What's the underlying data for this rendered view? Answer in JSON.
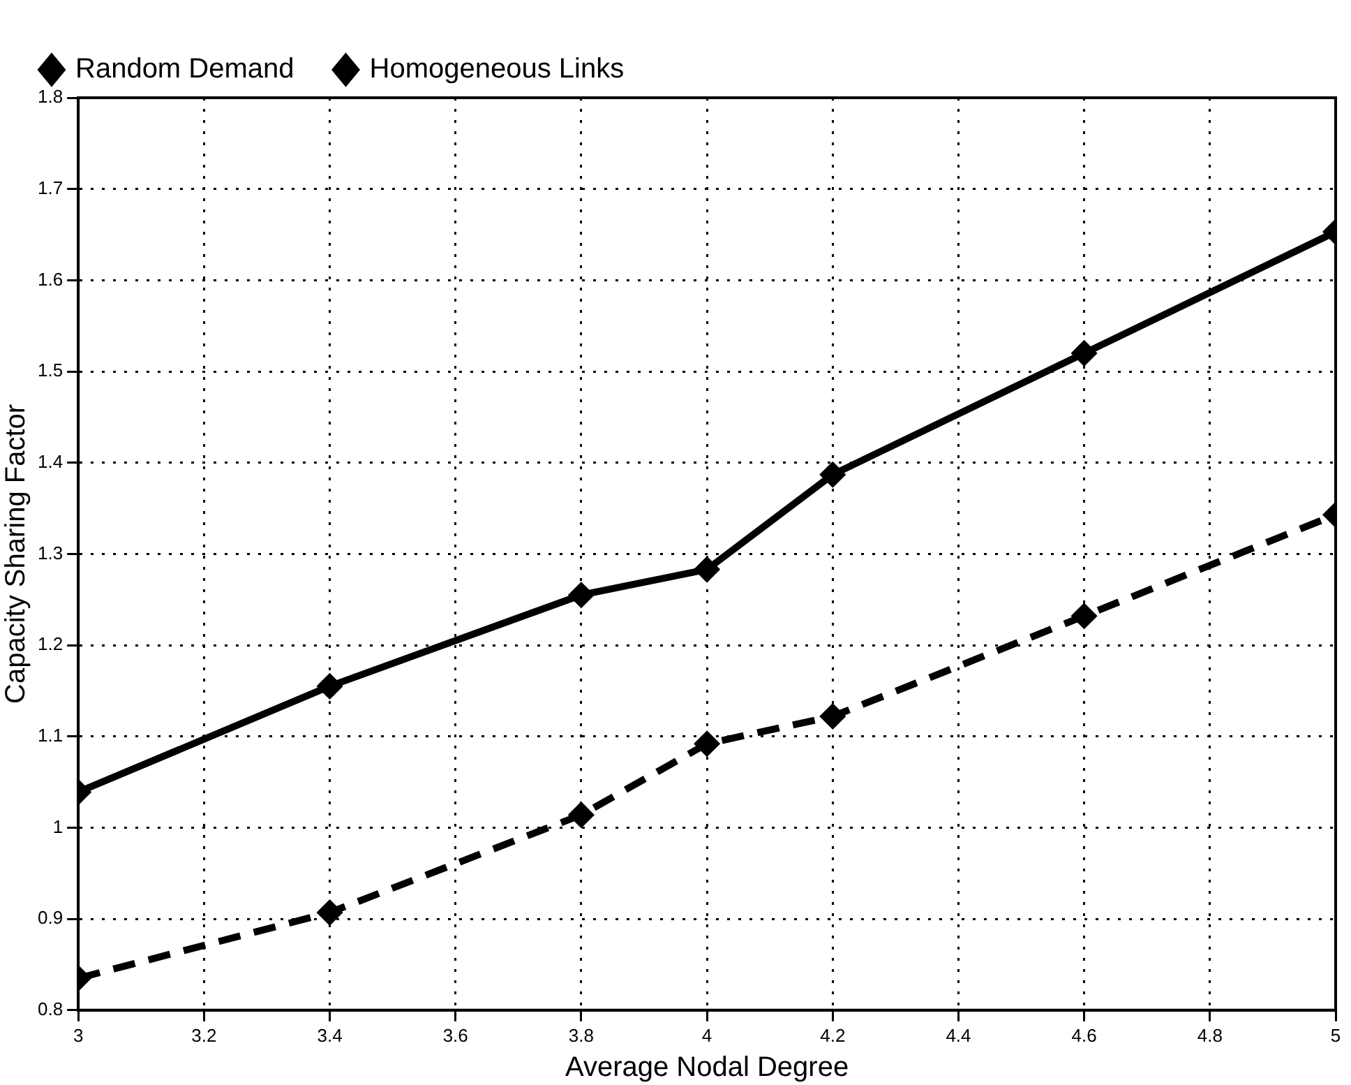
{
  "chart_data": {
    "type": "line",
    "xlabel": "Average Nodal Degree",
    "ylabel": "Capacity Sharing Factor",
    "x": [
      3,
      3.4,
      3.8,
      4,
      4.2,
      4.6,
      5
    ],
    "series": [
      {
        "name": "Random Demand",
        "color": "#000000",
        "line_style": "dashed",
        "values": [
          0.835,
          0.907,
          1.014,
          1.092,
          1.122,
          1.232,
          1.343
        ]
      },
      {
        "name": "Homogeneous Links",
        "color": "#000000",
        "line_style": "solid",
        "values": [
          1.039,
          1.155,
          1.255,
          1.283,
          1.387,
          1.52,
          1.653
        ]
      }
    ],
    "marker": "diamond",
    "xlim": [
      3,
      5
    ],
    "xticks": [
      3,
      3.2,
      3.4,
      3.6,
      3.8,
      4,
      4.2,
      4.4,
      4.6,
      4.8,
      5
    ],
    "ylim": [
      0.8,
      1.8
    ],
    "yticks": [
      0.8,
      0.9,
      1,
      1.1,
      1.2,
      1.3,
      1.4,
      1.5,
      1.6,
      1.7,
      1.8
    ],
    "grid": true,
    "legend": "top left"
  }
}
